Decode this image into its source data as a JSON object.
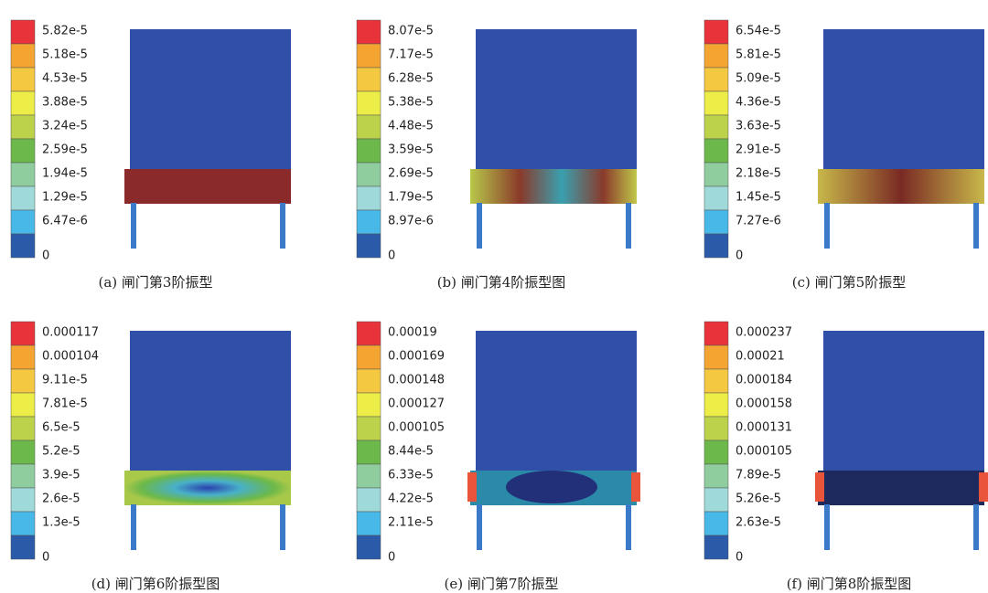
{
  "panels": [
    {
      "caption": "(a) 闸门第3阶振型",
      "legend": [
        "5.82e-5",
        "5.18e-5",
        "4.53e-5",
        "3.88e-5",
        "3.24e-5",
        "2.59e-5",
        "1.94e-5",
        "1.29e-5",
        "6.47e-6",
        "0"
      ]
    },
    {
      "caption": "(b) 闸门第4阶振型图",
      "legend": [
        "8.07e-5",
        "7.17e-5",
        "6.28e-5",
        "5.38e-5",
        "4.48e-5",
        "3.59e-5",
        "2.69e-5",
        "1.79e-5",
        "8.97e-6",
        "0"
      ]
    },
    {
      "caption": "(c) 闸门第5阶振型",
      "legend": [
        "6.54e-5",
        "5.81e-5",
        "5.09e-5",
        "4.36e-5",
        "3.63e-5",
        "2.91e-5",
        "2.18e-5",
        "1.45e-5",
        "7.27e-6",
        "0"
      ]
    },
    {
      "caption": "(d) 闸门第6阶振型图",
      "legend": [
        "0.000117",
        "0.000104",
        "9.11e-5",
        "7.81e-5",
        "6.5e-5",
        "5.2e-5",
        "3.9e-5",
        "2.6e-5",
        "1.3e-5",
        "0"
      ]
    },
    {
      "caption": "(e) 闸门第7阶振型",
      "legend": [
        "0.00019",
        "0.000169",
        "0.000148",
        "0.000127",
        "0.000105",
        "8.44e-5",
        "6.33e-5",
        "4.22e-5",
        "2.11e-5",
        "0"
      ]
    },
    {
      "caption": "(f) 闸门第8阶振型图",
      "legend": [
        "0.000237",
        "0.00021",
        "0.000184",
        "0.000158",
        "0.000131",
        "0.000105",
        "7.89e-5",
        "5.26e-5",
        "2.63e-5",
        "0"
      ]
    }
  ]
}
